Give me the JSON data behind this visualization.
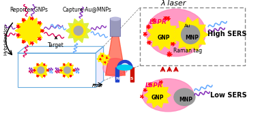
{
  "bg_color": "#ffffff",
  "labels": {
    "reporter_gnps": "Reporter-GNPs",
    "capture_au_mnps": "Capture-Au@MNPs",
    "lambda_laser": "λ laser",
    "raman_tag": "Raman tag",
    "lspr_high": "LSPR",
    "lspr_low": "LSPR",
    "gnp_high": "GNP",
    "mnp_high": "MNP",
    "au_high": "Au",
    "gnp_low": "GNP",
    "mnp_low": "MNP",
    "high_sers": "High SERS",
    "low_sers": "Low SERS",
    "hybridization": "Hybridization",
    "target": "Target",
    "flow": "Flow"
  },
  "colors": {
    "yellow": "#FFEE00",
    "yellow_light": "#FFFF44",
    "gray_green": "#B8C878",
    "gray": "#AAAAAA",
    "gray_dark": "#888888",
    "pink_bg": "#FF88BB",
    "red": "#FF0000",
    "dark_red": "#CC0000",
    "blue_light": "#66AAFF",
    "blue_bright": "#0055FF",
    "cyan": "#00BBFF",
    "purple": "#8833BB",
    "red_pink": "#DD0055",
    "black": "#000000",
    "white": "#FFFFFF",
    "magnet_blue": "#2244CC",
    "magnet_red": "#CC1100",
    "magnet_cyan": "#00CCEE",
    "tube_gray": "#9999BB",
    "tube_dark": "#6666AA",
    "laser_red": "#FF2200",
    "gnp_yellow": "#FFEE00",
    "mnp_shell": "#DDEE44",
    "mnp_gray": "#999999",
    "box_line": "#888888",
    "blue_box": "#66AADD"
  }
}
